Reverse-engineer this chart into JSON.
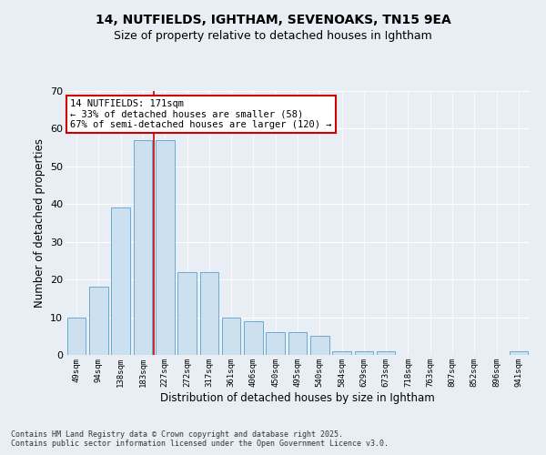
{
  "title1": "14, NUTFIELDS, IGHTHAM, SEVENOAKS, TN15 9EA",
  "title2": "Size of property relative to detached houses in Ightham",
  "xlabel": "Distribution of detached houses by size in Ightham",
  "ylabel": "Number of detached properties",
  "categories": [
    "49sqm",
    "94sqm",
    "138sqm",
    "183sqm",
    "227sqm",
    "272sqm",
    "317sqm",
    "361sqm",
    "406sqm",
    "450sqm",
    "495sqm",
    "540sqm",
    "584sqm",
    "629sqm",
    "673sqm",
    "718sqm",
    "763sqm",
    "807sqm",
    "852sqm",
    "896sqm",
    "941sqm"
  ],
  "values": [
    10,
    18,
    39,
    57,
    57,
    22,
    22,
    10,
    9,
    6,
    6,
    5,
    1,
    1,
    1,
    0,
    0,
    0,
    0,
    0,
    1
  ],
  "bar_color": "#cce0f0",
  "bar_edge_color": "#6aaad4",
  "vline_x": 3.5,
  "vline_color": "#cc0000",
  "ylim": [
    0,
    70
  ],
  "yticks": [
    0,
    10,
    20,
    30,
    40,
    50,
    60,
    70
  ],
  "annotation_title": "14 NUTFIELDS: 171sqm",
  "annotation_line1": "← 33% of detached houses are smaller (58)",
  "annotation_line2": "67% of semi-detached houses are larger (120) →",
  "annotation_box_color": "#ffffff",
  "annotation_box_edge": "#cc0000",
  "footer1": "Contains HM Land Registry data © Crown copyright and database right 2025.",
  "footer2": "Contains public sector information licensed under the Open Government Licence v3.0.",
  "bg_color": "#e8eef4",
  "plot_bg_color": "#e8eef4"
}
